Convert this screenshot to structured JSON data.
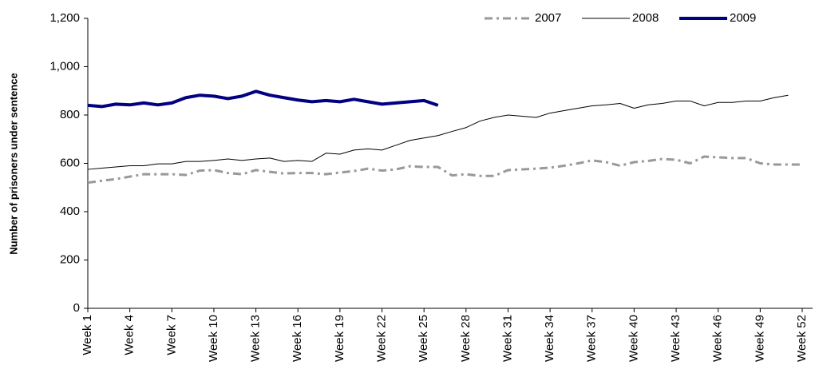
{
  "chart_data": {
    "type": "line",
    "y_label": "Number of prisoners under sentence",
    "categories": [
      "Week 1",
      null,
      null,
      "Week 4",
      null,
      null,
      "Week 7",
      null,
      null,
      "Week 10",
      null,
      null,
      "Week 13",
      null,
      null,
      "Week 16",
      null,
      null,
      "Week 19",
      null,
      null,
      "Week 22",
      null,
      null,
      "Week 25",
      null,
      null,
      "Week 28",
      null,
      null,
      "Week 31",
      null,
      null,
      "Week 34",
      null,
      null,
      "Week 37",
      null,
      null,
      "Week 40",
      null,
      null,
      "Week 43",
      null,
      null,
      "Week 46",
      null,
      null,
      "Week 49",
      null,
      null,
      "Week 52"
    ],
    "series": [
      {
        "name": "2007",
        "color": "#999999",
        "dash": "10,5,3,5",
        "width": 3,
        "values": [
          520,
          528,
          535,
          545,
          555,
          555,
          555,
          552,
          570,
          572,
          560,
          555,
          572,
          565,
          558,
          560,
          560,
          555,
          562,
          568,
          578,
          570,
          575,
          588,
          585,
          585,
          550,
          555,
          548,
          548,
          572,
          575,
          578,
          582,
          590,
          600,
          612,
          605,
          590,
          605,
          610,
          618,
          615,
          600,
          628,
          625,
          622,
          622,
          600,
          595,
          595,
          595
        ]
      },
      {
        "name": "2008",
        "color": "#000000",
        "width": 1,
        "values": [
          575,
          580,
          585,
          590,
          590,
          598,
          598,
          608,
          608,
          612,
          618,
          612,
          618,
          622,
          608,
          612,
          608,
          642,
          638,
          655,
          660,
          655,
          675,
          695,
          705,
          715,
          732,
          748,
          775,
          790,
          800,
          795,
          790,
          808,
          818,
          828,
          838,
          842,
          848,
          828,
          842,
          848,
          858,
          858,
          838,
          852,
          852,
          858,
          858,
          872,
          882,
          null
        ]
      },
      {
        "name": "2009",
        "color": "#000080",
        "width": 4,
        "values": [
          840,
          835,
          845,
          842,
          850,
          842,
          850,
          872,
          882,
          878,
          868,
          878,
          898,
          882,
          872,
          862,
          855,
          860,
          855,
          865,
          855,
          845,
          850,
          855,
          860,
          840,
          null,
          null,
          null,
          null,
          null,
          null,
          null,
          null,
          null,
          null,
          null,
          null,
          null,
          null,
          null,
          null,
          null,
          null,
          null,
          null,
          null,
          null,
          null,
          null,
          null,
          null
        ]
      }
    ],
    "ylim": [
      0,
      1200
    ],
    "yticks": [
      0,
      200,
      400,
      600,
      800,
      {
        "value": 1000,
        "label": "1,000"
      },
      {
        "value": 1200,
        "label": "1,200"
      }
    ],
    "legend": "top-right"
  }
}
